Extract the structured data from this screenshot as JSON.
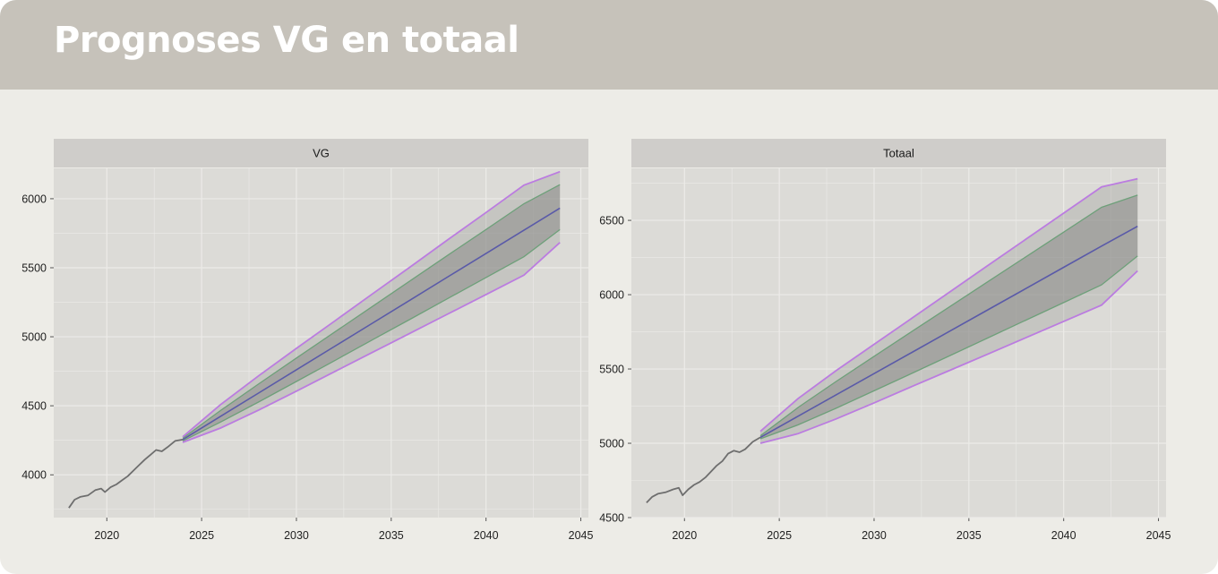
{
  "title": "Prognoses VG en totaal",
  "colors": {
    "header_bg": "#c6c2ba",
    "panel_bg": "#dcdbd7",
    "strip_bg": "#cfcdca",
    "grid": "#ecebe8",
    "history_line": "#6e6e6e",
    "forecast_line": "#5a5aa8",
    "band_fill": "#8b8b88",
    "band_edge": "#6ea07a",
    "outer_band": "#bb7ce0"
  },
  "chart_data": [
    {
      "type": "line",
      "panel": "VG",
      "title": "",
      "xlabel": "",
      "ylabel": "",
      "xlim": [
        2017.2,
        2045.4
      ],
      "ylim": [
        3690,
        6220
      ],
      "x_ticks": [
        2020,
        2025,
        2030,
        2035,
        2040,
        2045
      ],
      "y_ticks": [
        4000,
        4500,
        5000,
        5500,
        6000
      ],
      "grid": true,
      "legend": "none",
      "history": {
        "x": [
          2018.0,
          2018.3,
          2018.6,
          2019.0,
          2019.4,
          2019.7,
          2019.9,
          2020.2,
          2020.5,
          2020.8,
          2021.1,
          2021.4,
          2021.7,
          2022.0,
          2022.3,
          2022.6,
          2022.9,
          2023.2,
          2023.6,
          2024.0
        ],
        "y": [
          3760,
          3820,
          3840,
          3850,
          3890,
          3900,
          3875,
          3910,
          3930,
          3960,
          3990,
          4030,
          4070,
          4110,
          4145,
          4180,
          4170,
          4200,
          4245,
          4255
        ]
      },
      "forecast": {
        "x": [
          2024.0,
          2026.0,
          2028.0,
          2030.0,
          2032.0,
          2034.0,
          2036.0,
          2038.0,
          2040.0,
          2042.0,
          2043.9
        ],
        "mean": [
          4255,
          4424,
          4592,
          4761,
          4929,
          5098,
          5266,
          5435,
          5603,
          5772,
          5932
        ],
        "inner_lo": [
          4245,
          4382,
          4527,
          4676,
          4826,
          4977,
          5127,
          5278,
          5429,
          5580,
          5776
        ],
        "inner_hi": [
          4265,
          4466,
          4657,
          4846,
          5032,
          5219,
          5405,
          5592,
          5777,
          5964,
          6102
        ],
        "outer_lo": [
          4235,
          4339,
          4468,
          4606,
          4746,
          4886,
          5026,
          5166,
          5306,
          5446,
          5683
        ],
        "outer_hi": [
          4275,
          4509,
          4716,
          4916,
          5112,
          5310,
          5506,
          5704,
          5900,
          6098,
          6196
        ]
      }
    },
    {
      "type": "line",
      "panel": "Totaal",
      "title": "",
      "xlabel": "",
      "ylabel": "",
      "xlim": [
        2017.2,
        2045.4
      ],
      "ylim": [
        4500,
        6850
      ],
      "x_ticks": [
        2020,
        2025,
        2030,
        2035,
        2040,
        2045
      ],
      "y_ticks": [
        4500,
        5000,
        5500,
        6000,
        6500
      ],
      "grid": true,
      "legend": "none",
      "history": {
        "x": [
          2018.0,
          2018.3,
          2018.6,
          2019.0,
          2019.4,
          2019.7,
          2019.9,
          2020.2,
          2020.5,
          2020.8,
          2021.1,
          2021.4,
          2021.7,
          2022.0,
          2022.3,
          2022.6,
          2022.9,
          2023.2,
          2023.6,
          2024.0
        ],
        "y": [
          4600,
          4640,
          4660,
          4670,
          4690,
          4700,
          4650,
          4690,
          4720,
          4740,
          4770,
          4810,
          4850,
          4880,
          4930,
          4950,
          4940,
          4960,
          5010,
          5040
        ]
      },
      "forecast": {
        "x": [
          2024.0,
          2026.0,
          2028.0,
          2030.0,
          2032.0,
          2034.0,
          2036.0,
          2038.0,
          2040.0,
          2042.0,
          2043.9
        ],
        "mean": [
          5040,
          5183,
          5326,
          5469,
          5612,
          5755,
          5898,
          6041,
          6184,
          6327,
          6460
        ],
        "inner_lo": [
          5030,
          5124,
          5236,
          5353,
          5471,
          5590,
          5709,
          5828,
          5947,
          6066,
          6260
        ],
        "inner_hi": [
          5050,
          5242,
          5416,
          5585,
          5753,
          5920,
          6087,
          6254,
          6421,
          6588,
          6670
        ],
        "outer_lo": [
          5000,
          5065,
          5164,
          5272,
          5382,
          5491,
          5600,
          5710,
          5820,
          5930,
          6160
        ],
        "outer_hi": [
          5080,
          5302,
          5489,
          5666,
          5842,
          6019,
          6196,
          6372,
          6549,
          6725,
          6780
        ]
      }
    }
  ]
}
